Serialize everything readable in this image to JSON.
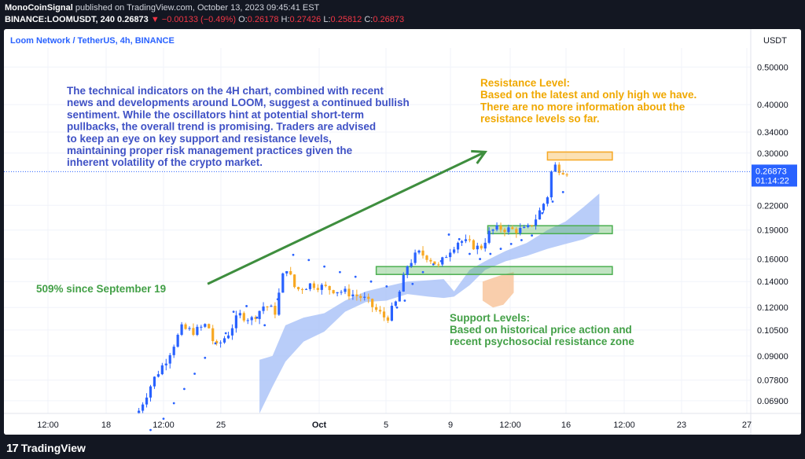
{
  "header": {
    "publisher": "MonoCoinSignal",
    "published_text": "published on TradingView.com, October 13, 2023 09:45:41 EST",
    "symbol": "BINANCE:LOOMUSDT, 240",
    "last": "0.26873",
    "change": "▼ −0.00133 (−0.49%)",
    "o_label": "O:",
    "o_value": "0.26178",
    "h_label": "H:",
    "h_value": "0.27426",
    "l_label": "L:",
    "l_value": "0.25812",
    "c_label": "C:",
    "c_value": "0.26873"
  },
  "footer": {
    "brand": "TradingView",
    "logo_text": "17"
  },
  "chart_data": {
    "type": "candlestick",
    "title": "Loom Network / TetherUS, 4h, BINANCE",
    "currency": "USDT",
    "y_scale": "log",
    "ylim": [
      0.064,
      0.56
    ],
    "y_ticks": [
      "0.50000",
      "0.40000",
      "0.34000",
      "0.30000",
      "0.22000",
      "0.19000",
      "0.16000",
      "0.14000",
      "0.12000",
      "0.10500",
      "0.09000",
      "0.07800",
      "0.06900"
    ],
    "y_tick_values": [
      0.5,
      0.4,
      0.34,
      0.3,
      0.22,
      0.19,
      0.16,
      0.14,
      0.12,
      0.105,
      0.09,
      0.078,
      0.069
    ],
    "x_ticks": [
      "12:00",
      "18",
      "12:00",
      "25",
      "Oct",
      "5",
      "9",
      "12:00",
      "16",
      "12:00",
      "23",
      "27"
    ],
    "x_ticks_bold": [
      false,
      false,
      false,
      false,
      true,
      false,
      false,
      false,
      false,
      false,
      false,
      false
    ],
    "last_price_label": "0.26873",
    "last_price": 0.26873,
    "countdown": "01:14:22",
    "price_points": [
      {
        "t": 0,
        "p": 0.064
      },
      {
        "t": 6,
        "p": 0.078
      },
      {
        "t": 11,
        "p": 0.088
      },
      {
        "t": 17,
        "p": 0.106
      },
      {
        "t": 22,
        "p": 0.104
      },
      {
        "t": 27,
        "p": 0.109
      },
      {
        "t": 30,
        "p": 0.094
      },
      {
        "t": 35,
        "p": 0.103
      },
      {
        "t": 39,
        "p": 0.115
      },
      {
        "t": 44,
        "p": 0.112
      },
      {
        "t": 49,
        "p": 0.122
      },
      {
        "t": 53,
        "p": 0.117
      },
      {
        "t": 57,
        "p": 0.155
      },
      {
        "t": 61,
        "p": 0.133
      },
      {
        "t": 67,
        "p": 0.138
      },
      {
        "t": 74,
        "p": 0.134
      },
      {
        "t": 81,
        "p": 0.131
      },
      {
        "t": 87,
        "p": 0.127
      },
      {
        "t": 92,
        "p": 0.118
      },
      {
        "t": 96,
        "p": 0.112
      },
      {
        "t": 100,
        "p": 0.125
      },
      {
        "t": 104,
        "p": 0.154
      },
      {
        "t": 108,
        "p": 0.166
      },
      {
        "t": 112,
        "p": 0.162
      },
      {
        "t": 116,
        "p": 0.153
      },
      {
        "t": 120,
        "p": 0.168
      },
      {
        "t": 124,
        "p": 0.179
      },
      {
        "t": 128,
        "p": 0.175
      },
      {
        "t": 132,
        "p": 0.17
      },
      {
        "t": 136,
        "p": 0.189
      },
      {
        "t": 140,
        "p": 0.192
      },
      {
        "t": 145,
        "p": 0.19
      },
      {
        "t": 150,
        "p": 0.19
      },
      {
        "t": 154,
        "p": 0.206
      },
      {
        "t": 158,
        "p": 0.233
      },
      {
        "t": 160,
        "p": 0.281
      },
      {
        "t": 163,
        "p": 0.272
      },
      {
        "t": 166,
        "p": 0.269
      }
    ],
    "cloud_upper": [
      {
        "t": 47,
        "p": 0.088
      },
      {
        "t": 52,
        "p": 0.09
      },
      {
        "t": 57,
        "p": 0.108
      },
      {
        "t": 64,
        "p": 0.113
      },
      {
        "t": 72,
        "p": 0.116
      },
      {
        "t": 80,
        "p": 0.125
      },
      {
        "t": 88,
        "p": 0.132
      },
      {
        "t": 96,
        "p": 0.136
      },
      {
        "t": 104,
        "p": 0.14
      },
      {
        "t": 112,
        "p": 0.141
      },
      {
        "t": 118,
        "p": 0.142
      },
      {
        "t": 122,
        "p": 0.132
      },
      {
        "t": 128,
        "p": 0.15
      },
      {
        "t": 134,
        "p": 0.158
      },
      {
        "t": 142,
        "p": 0.168
      },
      {
        "t": 150,
        "p": 0.176
      },
      {
        "t": 158,
        "p": 0.19
      },
      {
        "t": 165,
        "p": 0.2
      },
      {
        "t": 172,
        "p": 0.218
      },
      {
        "t": 178,
        "p": 0.236
      }
    ],
    "cloud_lower": [
      {
        "t": 47,
        "p": 0.064
      },
      {
        "t": 52,
        "p": 0.075
      },
      {
        "t": 57,
        "p": 0.087
      },
      {
        "t": 64,
        "p": 0.098
      },
      {
        "t": 72,
        "p": 0.104
      },
      {
        "t": 80,
        "p": 0.117
      },
      {
        "t": 88,
        "p": 0.124
      },
      {
        "t": 96,
        "p": 0.125
      },
      {
        "t": 104,
        "p": 0.13
      },
      {
        "t": 112,
        "p": 0.128
      },
      {
        "t": 118,
        "p": 0.127
      },
      {
        "t": 122,
        "p": 0.128
      },
      {
        "t": 128,
        "p": 0.137
      },
      {
        "t": 134,
        "p": 0.15
      },
      {
        "t": 142,
        "p": 0.158
      },
      {
        "t": 150,
        "p": 0.163
      },
      {
        "t": 158,
        "p": 0.17
      },
      {
        "t": 165,
        "p": 0.175
      },
      {
        "t": 172,
        "p": 0.18
      },
      {
        "t": 178,
        "p": 0.188
      }
    ],
    "cloud_bear": [
      {
        "t": 133,
        "p": 0.14,
        "q": 0.125
      },
      {
        "t": 137,
        "p": 0.143,
        "q": 0.12
      },
      {
        "t": 141,
        "p": 0.146,
        "q": 0.122
      },
      {
        "t": 145,
        "p": 0.148,
        "q": 0.131
      }
    ],
    "psar_points": [
      {
        "t": 5,
        "p": 0.058
      },
      {
        "t": 10,
        "p": 0.062
      },
      {
        "t": 14,
        "p": 0.068
      },
      {
        "t": 18,
        "p": 0.074
      },
      {
        "t": 22,
        "p": 0.081
      },
      {
        "t": 26,
        "p": 0.089
      },
      {
        "t": 30,
        "p": 0.097
      },
      {
        "t": 34,
        "p": 0.103
      },
      {
        "t": 37,
        "p": 0.117
      },
      {
        "t": 42,
        "p": 0.121
      },
      {
        "t": 46,
        "p": 0.113
      },
      {
        "t": 49,
        "p": 0.108
      },
      {
        "t": 54,
        "p": 0.126
      },
      {
        "t": 60,
        "p": 0.164
      },
      {
        "t": 66,
        "p": 0.159
      },
      {
        "t": 72,
        "p": 0.153
      },
      {
        "t": 78,
        "p": 0.148
      },
      {
        "t": 84,
        "p": 0.144
      },
      {
        "t": 90,
        "p": 0.14
      },
      {
        "t": 96,
        "p": 0.136
      },
      {
        "t": 100,
        "p": 0.12
      },
      {
        "t": 103,
        "p": 0.125
      },
      {
        "t": 106,
        "p": 0.138
      },
      {
        "t": 110,
        "p": 0.148
      },
      {
        "t": 114,
        "p": 0.155
      },
      {
        "t": 117,
        "p": 0.158
      },
      {
        "t": 120,
        "p": 0.185
      },
      {
        "t": 124,
        "p": 0.18
      },
      {
        "t": 128,
        "p": 0.165
      },
      {
        "t": 132,
        "p": 0.16
      },
      {
        "t": 136,
        "p": 0.165
      },
      {
        "t": 140,
        "p": 0.17
      },
      {
        "t": 144,
        "p": 0.175
      },
      {
        "t": 148,
        "p": 0.179
      },
      {
        "t": 152,
        "p": 0.184
      },
      {
        "t": 156,
        "p": 0.21
      },
      {
        "t": 160,
        "p": 0.225
      },
      {
        "t": 164,
        "p": 0.238
      }
    ],
    "zones": {
      "resistance": {
        "top": 0.302,
        "bottom": 0.288,
        "t0": 158,
        "t1": 183,
        "color": "#f7a823"
      },
      "support_upper": {
        "top": 0.195,
        "bottom": 0.186,
        "t0": 135,
        "t1": 183,
        "color": "#4caf50"
      },
      "support_lower": {
        "top": 0.153,
        "bottom": 0.146,
        "t0": 92,
        "t1": 183,
        "color": "#4caf50"
      }
    },
    "trend_arrow": {
      "t0": 27,
      "p0": 0.138,
      "t1": 134,
      "p1": 0.302,
      "color": "#3e8e3e"
    },
    "annotations": {
      "analysis": "The technical indicators on the 4H chart, combined with recent news and developments around LOOM, suggest a continued bullish sentiment. While the oscillators hint at potential short-term pullbacks, the overall trend is promising. Traders are advised to keep an eye on key support and resistance levels, maintaining proper risk management practices given the inherent volatility of the crypto market.",
      "resistance_title": "Resistance Level:",
      "resistance_body": "Based on the latest and only high we have. There are no more information about the resistance levels so far.",
      "gain": "509% since September 19",
      "support_title": "Support Levels:",
      "support_body": "Based on historical price action and recent psychosocial resistance zone"
    },
    "colors": {
      "bull": "#2962ff",
      "bear": "#f7a823",
      "cloud_bull": "#a8c0f7",
      "cloud_bear": "#f8c9a3",
      "psar": "#2962ff",
      "analysis_text": "#3f51c5",
      "resistance_text": "#f0a800",
      "support_text": "#43a047",
      "price_line": "#2962ff"
    }
  }
}
